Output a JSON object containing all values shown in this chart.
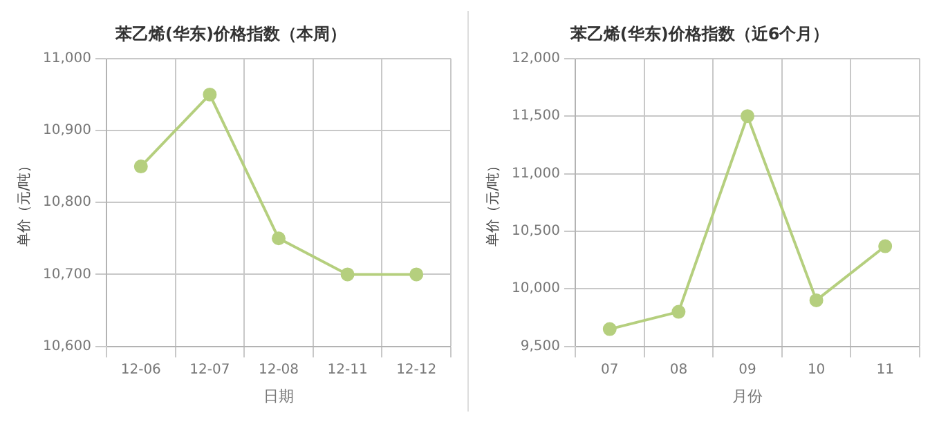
{
  "chart_data": [
    {
      "type": "line",
      "title": "苯乙烯(华东)价格指数（本周）",
      "xlabel": "日期",
      "ylabel": "单价（元/吨）",
      "categories": [
        "12-06",
        "12-07",
        "12-08",
        "12-11",
        "12-12"
      ],
      "series": [
        {
          "color": "#b5cf7e",
          "values": [
            10850,
            10950,
            10750,
            10700,
            10700
          ]
        }
      ],
      "ylim": [
        10600,
        11000
      ],
      "yticks": [
        {
          "value": 10600,
          "label": "10,600"
        },
        {
          "value": 10700,
          "label": "10,700"
        },
        {
          "value": 10800,
          "label": "10,800"
        },
        {
          "value": 10900,
          "label": "10,900"
        },
        {
          "value": 11000,
          "label": "11,000"
        }
      ],
      "grid": true,
      "marker": "circle",
      "legend": false
    },
    {
      "type": "line",
      "title": "苯乙烯(华东)价格指数（近6个月）",
      "xlabel": "月份",
      "ylabel": "单价（元/吨）",
      "categories": [
        "07",
        "08",
        "09",
        "10",
        "11"
      ],
      "series": [
        {
          "color": "#b5cf7e",
          "values": [
            9650,
            9800,
            11500,
            9900,
            10370
          ]
        }
      ],
      "ylim": [
        9500,
        12000
      ],
      "yticks": [
        {
          "value": 9500,
          "label": "9,500"
        },
        {
          "value": 10000,
          "label": "10,000"
        },
        {
          "value": 10500,
          "label": "10,500"
        },
        {
          "value": 11000,
          "label": "11,000"
        },
        {
          "value": 11500,
          "label": "11,500"
        },
        {
          "value": 12000,
          "label": "12,000"
        }
      ],
      "grid": true,
      "marker": "circle",
      "legend": false
    }
  ]
}
